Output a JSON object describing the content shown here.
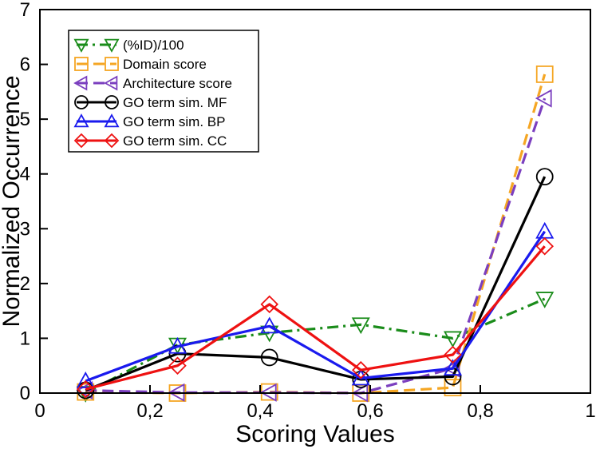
{
  "chart_data": {
    "type": "line",
    "xlabel": "Scoring Values",
    "ylabel": "Normalized Occurrence",
    "xlim": [
      0,
      1
    ],
    "ylim": [
      0,
      7
    ],
    "xticks": [
      0,
      0.2,
      0.4,
      0.6,
      0.8,
      1
    ],
    "xtick_labels": [
      "0",
      "0,2",
      "0,4",
      "0,6",
      "0,8",
      "1"
    ],
    "yticks": [
      0,
      1,
      2,
      3,
      4,
      5,
      6,
      7
    ],
    "ytick_labels": [
      "0",
      "1",
      "2",
      "3",
      "4",
      "5",
      "6",
      "7"
    ],
    "legend_position": "top-left",
    "x": [
      0.083,
      0.25,
      0.417,
      0.583,
      0.75,
      0.917
    ],
    "series": [
      {
        "name": "(%ID)/100",
        "color": "#1a8c1a",
        "dash": "dashdot",
        "marker": "triangle-down",
        "values": [
          0.0,
          0.88,
          1.1,
          1.25,
          1.0,
          1.72
        ]
      },
      {
        "name": "Domain score",
        "color": "#f5a623",
        "dash": "dash",
        "marker": "square",
        "values": [
          0.02,
          0.0,
          0.02,
          0.0,
          0.1,
          5.82
        ]
      },
      {
        "name": "Architecture score",
        "color": "#7b3fbf",
        "dash": "dash",
        "marker": "triangle-left",
        "values": [
          0.05,
          0.01,
          0.01,
          0.0,
          0.45,
          5.38
        ]
      },
      {
        "name": "GO term sim. MF",
        "color": "#000000",
        "dash": "solid",
        "marker": "circle",
        "values": [
          0.05,
          0.72,
          0.65,
          0.25,
          0.3,
          3.95
        ]
      },
      {
        "name": "GO term sim. BP",
        "color": "#1a1aee",
        "dash": "solid",
        "marker": "triangle-up",
        "values": [
          0.22,
          0.85,
          1.22,
          0.27,
          0.45,
          2.95
        ]
      },
      {
        "name": "GO term sim. CC",
        "color": "#ee1111",
        "dash": "solid",
        "marker": "diamond",
        "values": [
          0.07,
          0.5,
          1.62,
          0.42,
          0.7,
          2.68
        ]
      }
    ]
  }
}
